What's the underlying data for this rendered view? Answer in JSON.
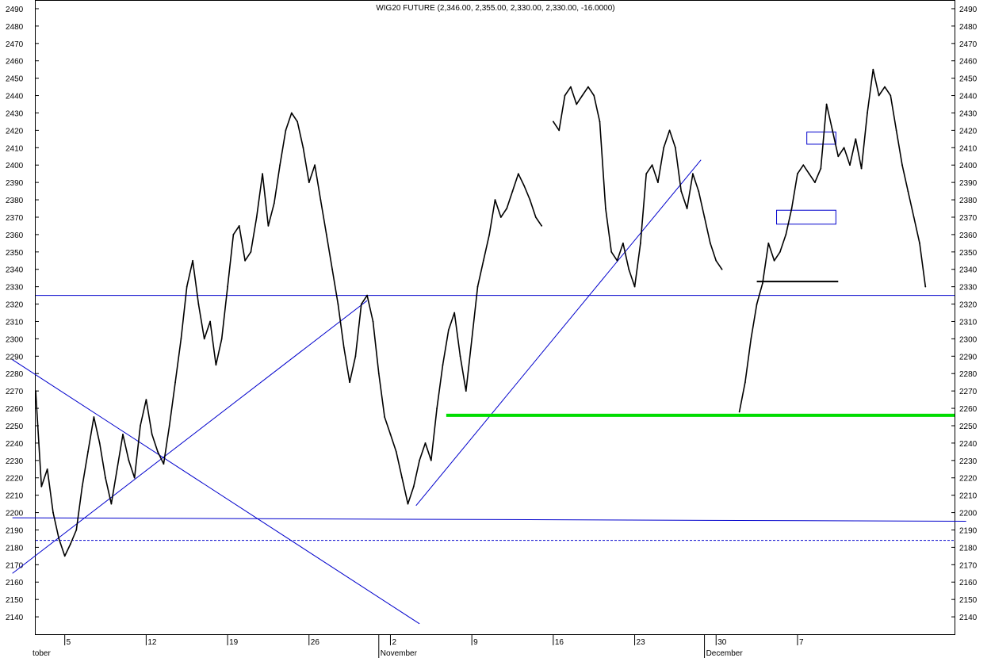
{
  "chart_data": {
    "type": "line",
    "title": "WIG20 FUTURE (2,346.00, 2,355.00, 2,330.00, 2,330.00, -16.0000)",
    "xlabel": "",
    "ylabel": "",
    "ylim": [
      2130,
      2495
    ],
    "yticks": [
      2140,
      2150,
      2160,
      2170,
      2180,
      2190,
      2200,
      2210,
      2220,
      2230,
      2240,
      2250,
      2260,
      2270,
      2280,
      2290,
      2300,
      2310,
      2320,
      2330,
      2340,
      2350,
      2360,
      2370,
      2380,
      2390,
      2400,
      2410,
      2420,
      2430,
      2440,
      2450,
      2460,
      2470,
      2480,
      2490
    ],
    "x_range_days": [
      0,
      76
    ],
    "x_ticks": [
      {
        "label": "5",
        "day": 2.5
      },
      {
        "label": "12",
        "day": 9.5
      },
      {
        "label": "19",
        "day": 16.5
      },
      {
        "label": "26",
        "day": 23.5
      },
      {
        "label": "2",
        "day": 30.5
      },
      {
        "label": "9",
        "day": 37.5
      },
      {
        "label": "16",
        "day": 44.5
      },
      {
        "label": "23",
        "day": 51.5
      },
      {
        "label": "30",
        "day": 58.5
      },
      {
        "label": "7",
        "day": 65.5
      }
    ],
    "month_labels": [
      {
        "label": "tober",
        "day": 0
      },
      {
        "label": "November",
        "day": 29.5
      },
      {
        "label": "December",
        "day": 57.5
      }
    ],
    "grid": false,
    "legend": "none",
    "series": [
      {
        "color": "#000000",
        "points": [
          [
            0,
            2270
          ],
          [
            0.5,
            2215
          ],
          [
            1,
            2225
          ],
          [
            1.5,
            2200
          ],
          [
            2,
            2185
          ],
          [
            2.5,
            2175
          ],
          [
            3,
            2182
          ],
          [
            3.5,
            2190
          ],
          [
            4,
            2215
          ],
          [
            4.5,
            2235
          ],
          [
            5,
            2255
          ],
          [
            5.5,
            2240
          ],
          [
            6,
            2220
          ],
          [
            6.5,
            2205
          ],
          [
            7,
            2225
          ],
          [
            7.5,
            2245
          ],
          [
            8,
            2230
          ],
          [
            8.5,
            2220
          ],
          [
            9,
            2250
          ],
          [
            9.5,
            2265
          ],
          [
            10,
            2245
          ],
          [
            10.5,
            2235
          ],
          [
            11,
            2228
          ],
          [
            11.5,
            2250
          ],
          [
            12,
            2275
          ],
          [
            12.5,
            2300
          ],
          [
            13,
            2330
          ],
          [
            13.5,
            2345
          ],
          [
            14,
            2320
          ],
          [
            14.5,
            2300
          ],
          [
            15,
            2310
          ],
          [
            15.5,
            2285
          ],
          [
            16,
            2300
          ],
          [
            16.5,
            2330
          ],
          [
            17,
            2360
          ],
          [
            17.5,
            2365
          ],
          [
            18,
            2345
          ],
          [
            18.5,
            2350
          ],
          [
            19,
            2370
          ],
          [
            19.5,
            2395
          ],
          [
            20,
            2365
          ],
          [
            20.5,
            2378
          ],
          [
            21,
            2400
          ],
          [
            21.5,
            2420
          ],
          [
            22,
            2430
          ],
          [
            22.5,
            2425
          ],
          [
            23,
            2410
          ],
          [
            23.5,
            2390
          ],
          [
            24,
            2400
          ],
          [
            24.5,
            2380
          ],
          [
            25,
            2360
          ],
          [
            25.5,
            2340
          ],
          [
            26,
            2320
          ],
          [
            26.5,
            2295
          ],
          [
            27,
            2275
          ],
          [
            27.5,
            2290
          ],
          [
            28,
            2320
          ],
          [
            28.5,
            2325
          ],
          [
            29,
            2310
          ],
          [
            29.5,
            2280
          ],
          [
            30,
            2255
          ],
          [
            30.5,
            2245
          ],
          [
            31,
            2235
          ],
          [
            31.5,
            2220
          ],
          [
            32,
            2205
          ],
          [
            32.5,
            2215
          ],
          [
            33,
            2230
          ],
          [
            33.5,
            2240
          ],
          [
            34,
            2230
          ],
          [
            34.5,
            2260
          ],
          [
            35,
            2285
          ],
          [
            35.5,
            2305
          ],
          [
            36,
            2315
          ],
          [
            36.5,
            2290
          ],
          [
            37,
            2270
          ],
          [
            37.5,
            2300
          ],
          [
            38,
            2330
          ],
          [
            38.5,
            2345
          ],
          [
            39,
            2360
          ],
          [
            39.5,
            2380
          ],
          [
            40,
            2370
          ],
          [
            40.5,
            2375
          ],
          [
            41,
            2385
          ],
          [
            41.5,
            2395
          ],
          [
            42,
            2388
          ],
          [
            42.5,
            2380
          ],
          [
            43,
            2370
          ],
          [
            43.5,
            2365
          ],
          [
            44.5,
            2425
          ],
          [
            45,
            2420
          ],
          [
            45.5,
            2440
          ],
          [
            46,
            2445
          ],
          [
            46.5,
            2435
          ],
          [
            47,
            2440
          ],
          [
            47.5,
            2445
          ],
          [
            48,
            2440
          ],
          [
            48.5,
            2425
          ],
          [
            49,
            2375
          ],
          [
            49.5,
            2350
          ],
          [
            50,
            2345
          ],
          [
            50.5,
            2355
          ],
          [
            51,
            2340
          ],
          [
            51.5,
            2330
          ],
          [
            52,
            2355
          ],
          [
            52.5,
            2395
          ],
          [
            53,
            2400
          ],
          [
            53.5,
            2390
          ],
          [
            54,
            2410
          ],
          [
            54.5,
            2420
          ],
          [
            55,
            2410
          ],
          [
            55.5,
            2385
          ],
          [
            56,
            2375
          ],
          [
            56.5,
            2395
          ],
          [
            57,
            2385
          ],
          [
            57.5,
            2370
          ],
          [
            58,
            2355
          ],
          [
            58.5,
            2345
          ],
          [
            59,
            2340
          ],
          [
            60.5,
            2258
          ],
          [
            61,
            2275
          ],
          [
            61.5,
            2300
          ],
          [
            62,
            2320
          ],
          [
            62.5,
            2332
          ],
          [
            63,
            2355
          ],
          [
            63.5,
            2345
          ],
          [
            64,
            2350
          ],
          [
            64.5,
            2360
          ],
          [
            65,
            2375
          ],
          [
            65.5,
            2395
          ],
          [
            66,
            2400
          ],
          [
            66.5,
            2395
          ],
          [
            67,
            2390
          ],
          [
            67.5,
            2398
          ],
          [
            68,
            2435
          ],
          [
            68.5,
            2420
          ],
          [
            69,
            2405
          ],
          [
            69.5,
            2410
          ],
          [
            70,
            2400
          ],
          [
            70.5,
            2415
          ],
          [
            71,
            2398
          ],
          [
            71.5,
            2430
          ],
          [
            72,
            2455
          ],
          [
            72.5,
            2440
          ],
          [
            73,
            2445
          ],
          [
            73.5,
            2440
          ],
          [
            74,
            2420
          ],
          [
            74.5,
            2400
          ],
          [
            75,
            2385
          ],
          [
            75.5,
            2370
          ],
          [
            76,
            2355
          ],
          [
            76.5,
            2330
          ]
        ]
      }
    ],
    "annotations": [
      {
        "type": "hline",
        "y": 2325,
        "color": "#0000cc"
      },
      {
        "type": "line",
        "from": [
          -2,
          2197
        ],
        "to": [
          80,
          2195
        ],
        "color": "#0000cc"
      },
      {
        "type": "hline",
        "y": 2184,
        "color": "#0000cc",
        "dashed": true
      },
      {
        "type": "line",
        "from": [
          -2,
          2288
        ],
        "to": [
          33,
          2136
        ],
        "color": "#0000cc"
      },
      {
        "type": "line",
        "from": [
          -2,
          2165
        ],
        "to": [
          28.5,
          2322
        ],
        "color": "#0000cc"
      },
      {
        "type": "line",
        "from": [
          32.7,
          2204
        ],
        "to": [
          57.2,
          2403
        ],
        "color": "#0000cc"
      },
      {
        "type": "hline_segment",
        "from_day": 35.3,
        "to_day": 80,
        "y": 2256,
        "color": "#00dd00",
        "thick": true
      },
      {
        "type": "rect",
        "from": [
          66.3,
          2412
        ],
        "to": [
          68.8,
          2419
        ],
        "color": "#0000cc"
      },
      {
        "type": "rect",
        "from": [
          63.7,
          2366
        ],
        "to": [
          68.8,
          2374
        ],
        "color": "#0000cc"
      },
      {
        "type": "hline_segment",
        "from_day": 62,
        "to_day": 69,
        "y": 2333,
        "color": "#000000",
        "thick": false
      }
    ]
  }
}
